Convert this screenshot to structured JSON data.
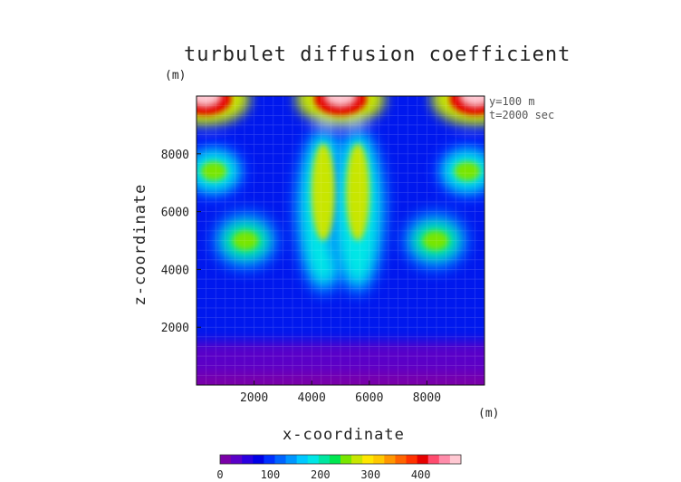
{
  "chart_data": {
    "type": "heatmap",
    "title": "turbulet diffusion coefficient",
    "xlabel": "x-coordinate",
    "ylabel": "z-coordinate",
    "x_unit": "(m)",
    "z_unit": "(m)",
    "annotations": [
      "y=100 m",
      "t=2000 sec"
    ],
    "xlim": [
      0,
      10000
    ],
    "ylim": [
      0,
      10000
    ],
    "x_ticks": [
      2000,
      4000,
      6000,
      8000
    ],
    "y_ticks": [
      2000,
      4000,
      6000,
      8000
    ],
    "colorbar": {
      "min": 0,
      "max": 480,
      "ticks": [
        0,
        100,
        200,
        300,
        400
      ],
      "colors": [
        "#7a00a8",
        "#5a00c8",
        "#2a00e0",
        "#0000e6",
        "#0030ff",
        "#0064ff",
        "#0096ff",
        "#00c8ff",
        "#00e6e6",
        "#00e6a0",
        "#00e650",
        "#78e600",
        "#c8e600",
        "#ffe600",
        "#ffc800",
        "#ff9600",
        "#ff6400",
        "#ff3200",
        "#e60000",
        "#ff4b6e",
        "#ff8caa",
        "#ffc8d2"
      ]
    },
    "features": [
      {
        "name": "left-plume",
        "x": 4400,
        "z_range": [
          3500,
          8600
        ],
        "peak": 300
      },
      {
        "name": "right-plume",
        "x": 5600,
        "z_range": [
          3500,
          8600
        ],
        "peak": 300
      },
      {
        "name": "left-arc",
        "x": 1700,
        "z": 5000,
        "peak": 260
      },
      {
        "name": "right-arc",
        "x": 8300,
        "z": 5000,
        "peak": 260
      },
      {
        "name": "left-eddy",
        "x": 600,
        "z": 7400,
        "peak": 240
      },
      {
        "name": "right-eddy",
        "x": 9400,
        "z": 7400,
        "peak": 240
      },
      {
        "name": "top-left-corner",
        "x": 300,
        "z": 9900,
        "peak": 480
      },
      {
        "name": "top-center",
        "x": 5000,
        "z": 9900,
        "peak": 480
      },
      {
        "name": "top-right-corner",
        "x": 9700,
        "z": 9900,
        "peak": 480
      },
      {
        "name": "lower-boundary-layer",
        "z_range": [
          0,
          1500
        ],
        "peak": 20
      }
    ]
  }
}
